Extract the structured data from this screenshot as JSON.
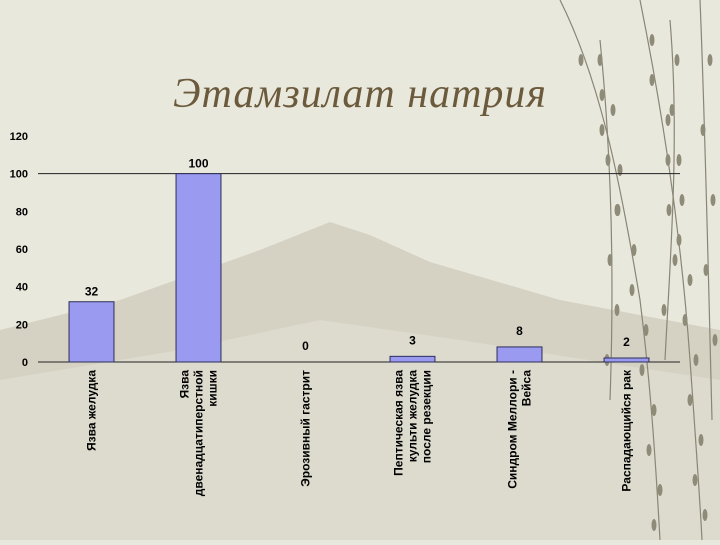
{
  "slide": {
    "title": "Этамзилат натрия"
  },
  "colors": {
    "background": "#e9e8dd",
    "bar_fill": "#9a9af0",
    "bar_stroke": "#2d2d5a",
    "title": "#6b5a3c"
  },
  "chart_data": {
    "type": "bar",
    "title": "",
    "xlabel": "",
    "ylabel": "",
    "ylim": [
      0,
      120
    ],
    "yticks": [
      0,
      20,
      40,
      60,
      80,
      100,
      120
    ],
    "grid": false,
    "reference_line_at": 100,
    "categories": [
      [
        "Язва желудка"
      ],
      [
        "Язва",
        "двенадцатиперстной",
        "кишки"
      ],
      [
        "Эрозивный гастрит"
      ],
      [
        "Пептическая язва",
        "культи желудка",
        "после резекции"
      ],
      [
        "Синдром Меллори -",
        "Вейса"
      ],
      [
        "Распадающийся рак"
      ]
    ],
    "values": [
      32,
      100,
      0,
      3,
      8,
      2
    ],
    "data_labels": [
      "32",
      "100",
      "0",
      "3",
      "8",
      "2"
    ]
  }
}
